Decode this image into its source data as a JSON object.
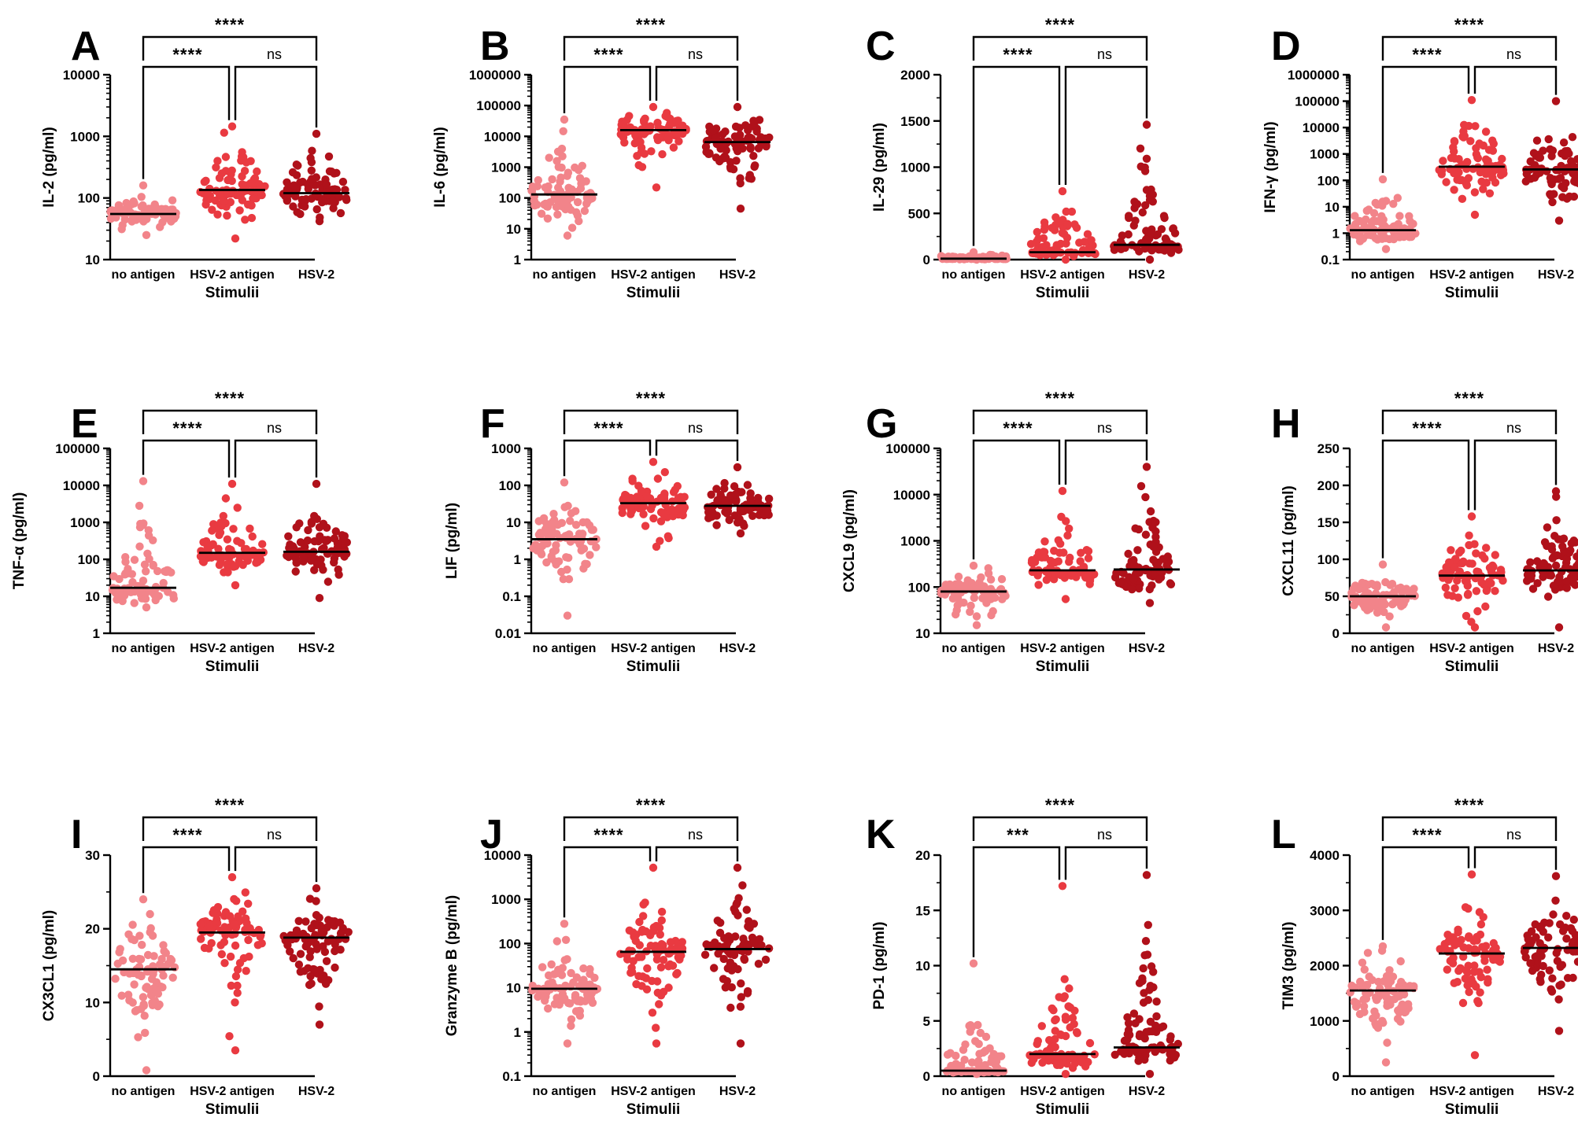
{
  "figure": {
    "categories": [
      "no antigen",
      "HSV-2 antigen",
      "HSV-2"
    ],
    "xlabel": "Stimulii",
    "colors": [
      "#f2848a",
      "#e93a41",
      "#b0111a"
    ],
    "panels": [
      {
        "letter": "A",
        "ylabel": "IL-2 (pg/ml)",
        "scale": "log",
        "ylim": [
          10,
          10000
        ],
        "ticks": [
          "10",
          "100",
          "1000",
          "10000"
        ],
        "tickValues": [
          10,
          100,
          1000,
          10000
        ],
        "medians": [
          55,
          135,
          120
        ],
        "ranges": [
          [
            25,
            160
          ],
          [
            22,
            1450
          ],
          [
            42,
            1100
          ]
        ],
        "n": 80,
        "sig": {
          "top": "****",
          "left": "****",
          "right": "ns"
        }
      },
      {
        "letter": "B",
        "ylabel": "IL-6 (pg/ml)",
        "scale": "log",
        "ylim": [
          1,
          1000000
        ],
        "ticks": [
          "1",
          "10",
          "100",
          "1000",
          "10000",
          "100000",
          "1000000"
        ],
        "tickValues": [
          1,
          10,
          100,
          1000,
          10000,
          100000,
          1000000
        ],
        "medians": [
          130,
          16000,
          6500
        ],
        "ranges": [
          [
            6,
            35000
          ],
          [
            220,
            90000
          ],
          [
            45,
            90000
          ]
        ],
        "n": 80,
        "sig": {
          "top": "****",
          "left": "****",
          "right": "ns"
        }
      },
      {
        "letter": "C",
        "ylabel": "IL-29 (pg/ml)",
        "scale": "linear",
        "ylim": [
          0,
          2000
        ],
        "ticks": [
          "0",
          "500",
          "1000",
          "1500",
          "2000"
        ],
        "tickValues": [
          0,
          500,
          1000,
          1500,
          2000
        ],
        "medians": [
          10,
          80,
          160
        ],
        "ranges": [
          [
            0,
            80
          ],
          [
            0,
            740
          ],
          [
            0,
            1460
          ]
        ],
        "n": 80,
        "sig": {
          "top": "****",
          "left": "****",
          "right": "ns"
        }
      },
      {
        "letter": "D",
        "ylabel": "IFN-γ (pg/ml)",
        "scale": "log",
        "ylim": [
          0.1,
          1000000
        ],
        "ticks": [
          "0.1",
          "1",
          "10",
          "100",
          "1000",
          "10000",
          "100000",
          "1000000"
        ],
        "tickValues": [
          0.1,
          1,
          10,
          100,
          1000,
          10000,
          100000,
          1000000
        ],
        "medians": [
          1.3,
          330,
          260
        ],
        "ranges": [
          [
            0.25,
            110
          ],
          [
            5,
            110000
          ],
          [
            3,
            100000
          ]
        ],
        "n": 80,
        "sig": {
          "top": "****",
          "left": "****",
          "right": "ns"
        }
      },
      {
        "letter": "E",
        "ylabel": "TNF-α (pg/ml)",
        "scale": "log",
        "ylim": [
          1,
          100000
        ],
        "ticks": [
          "1",
          "10",
          "100",
          "1000",
          "10000",
          "100000"
        ],
        "tickValues": [
          1,
          10,
          100,
          1000,
          10000,
          100000
        ],
        "medians": [
          17,
          150,
          160
        ],
        "ranges": [
          [
            5,
            13000
          ],
          [
            20,
            11000
          ],
          [
            9,
            11000
          ]
        ],
        "n": 80,
        "sig": {
          "top": "****",
          "left": "****",
          "right": "ns"
        }
      },
      {
        "letter": "F",
        "ylabel": "LIF (pg/ml)",
        "scale": "log",
        "ylim": [
          0.01,
          1000
        ],
        "ticks": [
          "0.01",
          "0.1",
          "1",
          "10",
          "100",
          "1000"
        ],
        "tickValues": [
          0.01,
          0.1,
          1,
          10,
          100,
          1000
        ],
        "medians": [
          3.5,
          33,
          28
        ],
        "ranges": [
          [
            0.03,
            120
          ],
          [
            2.2,
            430
          ],
          [
            5,
            310
          ]
        ],
        "n": 80,
        "sig": {
          "top": "****",
          "left": "****",
          "right": "ns"
        }
      },
      {
        "letter": "G",
        "ylabel": "CXCL9 (pg/ml)",
        "scale": "log",
        "ylim": [
          10,
          100000
        ],
        "ticks": [
          "10",
          "100",
          "1000",
          "10000",
          "100000"
        ],
        "tickValues": [
          10,
          100,
          1000,
          10000,
          100000
        ],
        "medians": [
          80,
          230,
          240
        ],
        "ranges": [
          [
            15,
            290
          ],
          [
            55,
            12000
          ],
          [
            45,
            40000
          ]
        ],
        "n": 80,
        "sig": {
          "top": "****",
          "left": "****",
          "right": "ns"
        }
      },
      {
        "letter": "H",
        "ylabel": "CXCL11 (pg/ml)",
        "scale": "linear",
        "ylim": [
          0,
          250
        ],
        "ticks": [
          "0",
          "50",
          "100",
          "150",
          "200",
          "250"
        ],
        "tickValues": [
          0,
          50,
          100,
          150,
          200,
          250
        ],
        "medians": [
          50,
          78,
          85
        ],
        "ranges": [
          [
            8,
            93
          ],
          [
            8,
            158
          ],
          [
            8,
            192
          ]
        ],
        "n": 80,
        "sig": {
          "top": "****",
          "left": "****",
          "right": "ns"
        }
      },
      {
        "letter": "I",
        "ylabel": "CX3CL1 (pg/ml)",
        "scale": "linear",
        "ylim": [
          0,
          30
        ],
        "ticks": [
          "0",
          "10",
          "20",
          "30"
        ],
        "tickValues": [
          0,
          10,
          20,
          30
        ],
        "medians": [
          14.5,
          19.5,
          18.8
        ],
        "ranges": [
          [
            0.8,
            24
          ],
          [
            3.5,
            27
          ],
          [
            7,
            25.5
          ]
        ],
        "n": 80,
        "sig": {
          "top": "****",
          "left": "****",
          "right": "ns"
        }
      },
      {
        "letter": "J",
        "ylabel": "Granzyme B (pg/ml)",
        "scale": "log",
        "ylim": [
          0.1,
          10000
        ],
        "ticks": [
          "0.1",
          "1",
          "10",
          "100",
          "1000",
          "10000"
        ],
        "tickValues": [
          0.1,
          1,
          10,
          100,
          1000,
          10000
        ],
        "medians": [
          9.5,
          65,
          75
        ],
        "ranges": [
          [
            0.55,
            280
          ],
          [
            0.55,
            5200
          ],
          [
            0.55,
            5200
          ]
        ],
        "n": 80,
        "sig": {
          "top": "****",
          "left": "****",
          "right": "ns"
        }
      },
      {
        "letter": "K",
        "ylabel": "PD-1 (pg/ml)",
        "scale": "linear",
        "ylim": [
          0,
          20
        ],
        "ticks": [
          "0",
          "5",
          "10",
          "15",
          "20"
        ],
        "tickValues": [
          0,
          5,
          10,
          15,
          20
        ],
        "medians": [
          0.5,
          2,
          2.6
        ],
        "ranges": [
          [
            0.2,
            10.2
          ],
          [
            0.2,
            17.2
          ],
          [
            0.2,
            18.2
          ]
        ],
        "n": 80,
        "sig": {
          "top": "****",
          "left": "***",
          "right": "ns"
        }
      },
      {
        "letter": "L",
        "ylabel": "TIM3 (pg/ml)",
        "scale": "linear",
        "ylim": [
          0,
          4000
        ],
        "ticks": [
          "0",
          "1000",
          "2000",
          "3000",
          "4000"
        ],
        "tickValues": [
          0,
          1000,
          2000,
          3000,
          4000
        ],
        "medians": [
          1550,
          2220,
          2320
        ],
        "ranges": [
          [
            250,
            2350
          ],
          [
            380,
            3650
          ],
          [
            820,
            3620
          ]
        ],
        "n": 80,
        "sig": {
          "top": "****",
          "left": "****",
          "right": "ns"
        }
      }
    ]
  },
  "chart_data": [
    {
      "type": "scatter",
      "title": "A",
      "ylabel": "IL-2 (pg/ml)",
      "xlabel": "Stimulii",
      "yscale": "log",
      "ylim": [
        10,
        10000
      ],
      "categories": [
        "no antigen",
        "HSV-2 antigen",
        "HSV-2"
      ],
      "medians": [
        55,
        135,
        120
      ],
      "annotations": {
        "no antigen vs HSV-2 antigen": "****",
        "HSV-2 antigen vs HSV-2": "ns",
        "no antigen vs HSV-2": "****"
      }
    },
    {
      "type": "scatter",
      "title": "B",
      "ylabel": "IL-6 (pg/ml)",
      "xlabel": "Stimulii",
      "yscale": "log",
      "ylim": [
        1,
        1000000
      ],
      "categories": [
        "no antigen",
        "HSV-2 antigen",
        "HSV-2"
      ],
      "medians": [
        130,
        16000,
        6500
      ],
      "annotations": {
        "no antigen vs HSV-2 antigen": "****",
        "HSV-2 antigen vs HSV-2": "ns",
        "no antigen vs HSV-2": "****"
      }
    },
    {
      "type": "scatter",
      "title": "C",
      "ylabel": "IL-29 (pg/ml)",
      "xlabel": "Stimulii",
      "yscale": "linear",
      "ylim": [
        0,
        2000
      ],
      "categories": [
        "no antigen",
        "HSV-2 antigen",
        "HSV-2"
      ],
      "medians": [
        10,
        80,
        160
      ],
      "annotations": {
        "no antigen vs HSV-2 antigen": "****",
        "HSV-2 antigen vs HSV-2": "ns",
        "no antigen vs HSV-2": "****"
      }
    },
    {
      "type": "scatter",
      "title": "D",
      "ylabel": "IFN-γ (pg/ml)",
      "xlabel": "Stimulii",
      "yscale": "log",
      "ylim": [
        0.1,
        1000000
      ],
      "categories": [
        "no antigen",
        "HSV-2 antigen",
        "HSV-2"
      ],
      "medians": [
        1.3,
        330,
        260
      ],
      "annotations": {
        "no antigen vs HSV-2 antigen": "****",
        "HSV-2 antigen vs HSV-2": "ns",
        "no antigen vs HSV-2": "****"
      }
    },
    {
      "type": "scatter",
      "title": "E",
      "ylabel": "TNF-α (pg/ml)",
      "xlabel": "Stimulii",
      "yscale": "log",
      "ylim": [
        1,
        100000
      ],
      "categories": [
        "no antigen",
        "HSV-2 antigen",
        "HSV-2"
      ],
      "medians": [
        17,
        150,
        160
      ],
      "annotations": {
        "no antigen vs HSV-2 antigen": "****",
        "HSV-2 antigen vs HSV-2": "ns",
        "no antigen vs HSV-2": "****"
      }
    },
    {
      "type": "scatter",
      "title": "F",
      "ylabel": "LIF (pg/ml)",
      "xlabel": "Stimulii",
      "yscale": "log",
      "ylim": [
        0.01,
        1000
      ],
      "categories": [
        "no antigen",
        "HSV-2 antigen",
        "HSV-2"
      ],
      "medians": [
        3.5,
        33,
        28
      ],
      "annotations": {
        "no antigen vs HSV-2 antigen": "****",
        "HSV-2 antigen vs HSV-2": "ns",
        "no antigen vs HSV-2": "****"
      }
    },
    {
      "type": "scatter",
      "title": "G",
      "ylabel": "CXCL9 (pg/ml)",
      "xlabel": "Stimulii",
      "yscale": "log",
      "ylim": [
        10,
        100000
      ],
      "categories": [
        "no antigen",
        "HSV-2 antigen",
        "HSV-2"
      ],
      "medians": [
        80,
        230,
        240
      ],
      "annotations": {
        "no antigen vs HSV-2 antigen": "****",
        "HSV-2 antigen vs HSV-2": "ns",
        "no antigen vs HSV-2": "****"
      }
    },
    {
      "type": "scatter",
      "title": "H",
      "ylabel": "CXCL11 (pg/ml)",
      "xlabel": "Stimulii",
      "yscale": "linear",
      "ylim": [
        0,
        250
      ],
      "categories": [
        "no antigen",
        "HSV-2 antigen",
        "HSV-2"
      ],
      "medians": [
        50,
        78,
        85
      ],
      "annotations": {
        "no antigen vs HSV-2 antigen": "****",
        "HSV-2 antigen vs HSV-2": "ns",
        "no antigen vs HSV-2": "****"
      }
    },
    {
      "type": "scatter",
      "title": "I",
      "ylabel": "CX3CL1 (pg/ml)",
      "xlabel": "Stimulii",
      "yscale": "linear",
      "ylim": [
        0,
        30
      ],
      "categories": [
        "no antigen",
        "HSV-2 antigen",
        "HSV-2"
      ],
      "medians": [
        14.5,
        19.5,
        18.8
      ],
      "annotations": {
        "no antigen vs HSV-2 antigen": "****",
        "HSV-2 antigen vs HSV-2": "ns",
        "no antigen vs HSV-2": "****"
      }
    },
    {
      "type": "scatter",
      "title": "J",
      "ylabel": "Granzyme B (pg/ml)",
      "xlabel": "Stimulii",
      "yscale": "log",
      "ylim": [
        0.1,
        10000
      ],
      "categories": [
        "no antigen",
        "HSV-2 antigen",
        "HSV-2"
      ],
      "medians": [
        9.5,
        65,
        75
      ],
      "annotations": {
        "no antigen vs HSV-2 antigen": "****",
        "HSV-2 antigen vs HSV-2": "ns",
        "no antigen vs HSV-2": "****"
      }
    },
    {
      "type": "scatter",
      "title": "K",
      "ylabel": "PD-1 (pg/ml)",
      "xlabel": "Stimulii",
      "yscale": "linear",
      "ylim": [
        0,
        20
      ],
      "categories": [
        "no antigen",
        "HSV-2 antigen",
        "HSV-2"
      ],
      "medians": [
        0.5,
        2,
        2.6
      ],
      "annotations": {
        "no antigen vs HSV-2 antigen": "***",
        "HSV-2 antigen vs HSV-2": "ns",
        "no antigen vs HSV-2": "****"
      }
    },
    {
      "type": "scatter",
      "title": "L",
      "ylabel": "TIM3 (pg/ml)",
      "xlabel": "Stimulii",
      "yscale": "linear",
      "ylim": [
        0,
        4000
      ],
      "categories": [
        "no antigen",
        "HSV-2 antigen",
        "HSV-2"
      ],
      "medians": [
        1550,
        2220,
        2320
      ],
      "annotations": {
        "no antigen vs HSV-2 antigen": "****",
        "HSV-2 antigen vs HSV-2": "ns",
        "no antigen vs HSV-2": "****"
      }
    }
  ]
}
